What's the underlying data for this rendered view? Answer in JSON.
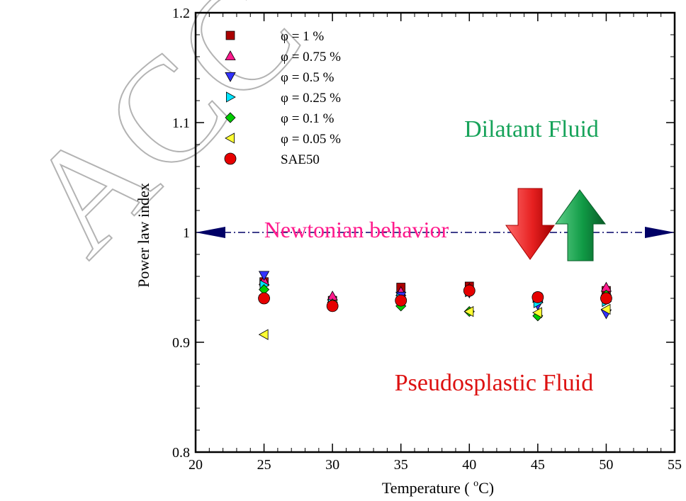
{
  "chart_data": {
    "type": "scatter",
    "xlabel": "Temperature ( °C)",
    "xlabel_main": "Temperature ( ",
    "xlabel_sup": "o",
    "xlabel_end": "C)",
    "ylabel": "Power law index",
    "xlim": [
      20,
      55
    ],
    "ylim": [
      0.8,
      1.2
    ],
    "xticks": [
      20,
      25,
      30,
      35,
      40,
      45,
      50,
      55
    ],
    "yticks": [
      "0.8",
      "0.9",
      "1",
      "1.1",
      "1.2"
    ],
    "grid": false,
    "legend_position": "top-left",
    "series": [
      {
        "name": "φ = 1 %",
        "marker": "square",
        "color": "#aa0000",
        "x": [
          25,
          30,
          35,
          40,
          45,
          50
        ],
        "y": [
          0.955,
          0.938,
          0.95,
          0.951,
          0.941,
          0.947
        ]
      },
      {
        "name": "φ = 0.75 %",
        "marker": "triangle-up",
        "color": "#ff1a8c",
        "x": [
          25,
          30,
          35,
          40,
          45,
          50
        ],
        "y": [
          0.956,
          0.942,
          0.946,
          0.949,
          0.94,
          0.95
        ]
      },
      {
        "name": "φ = 0.5 %",
        "marker": "triangle-down",
        "color": "#3333ff",
        "x": [
          25,
          30,
          35,
          40,
          45,
          50
        ],
        "y": [
          0.961,
          0.933,
          0.942,
          0.945,
          0.934,
          0.926
        ]
      },
      {
        "name": "φ = 0.25 %",
        "marker": "triangle-right",
        "color": "#00e5ff",
        "x": [
          25,
          30,
          35,
          40,
          45,
          50
        ],
        "y": [
          0.952,
          0.935,
          0.94,
          0.946,
          0.936,
          0.937
        ]
      },
      {
        "name": "φ = 0.1 %",
        "marker": "diamond",
        "color": "#00cc00",
        "x": [
          25,
          30,
          35,
          40,
          45,
          50
        ],
        "y": [
          0.948,
          0.935,
          0.933,
          0.928,
          0.924,
          0.943
        ]
      },
      {
        "name": "φ = 0.05 %",
        "marker": "triangle-left",
        "color": "#ffff33",
        "x": [
          25,
          30,
          35,
          40,
          45,
          50
        ],
        "y": [
          0.907,
          0.934,
          0.938,
          0.928,
          0.927,
          0.93
        ]
      },
      {
        "name": "SAE50",
        "marker": "circle",
        "color": "#e60000",
        "x": [
          25,
          30,
          35,
          40,
          45,
          50
        ],
        "y": [
          0.94,
          0.933,
          0.938,
          0.947,
          0.941,
          0.94
        ]
      }
    ],
    "reference_line": {
      "y": 1.0,
      "style": "dash-dot",
      "color": "#000066"
    },
    "annotations": {
      "dilatant": "Dilatant Fluid",
      "newtonian": "Newtonian behavior",
      "pseudoplastic": "Pseudosplastic Fluid"
    },
    "arrows": {
      "down_color": "#e62020",
      "up_color": "#0f8a3a"
    }
  },
  "watermark_text": "ACC"
}
